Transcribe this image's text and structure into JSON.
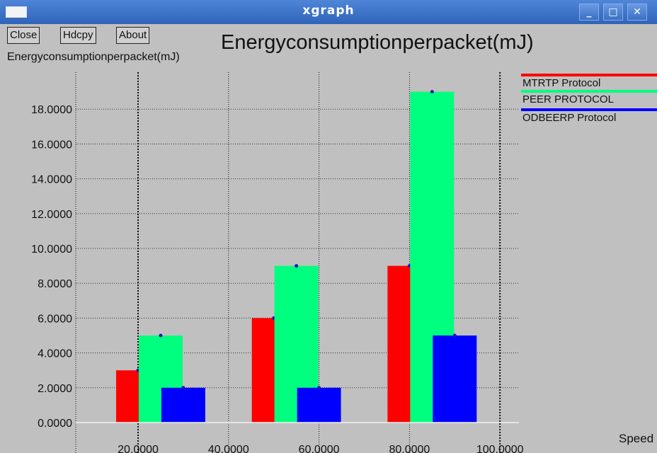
{
  "window": {
    "title": "xgraph",
    "minimize_glyph": "_",
    "maximize_glyph": "□",
    "close_glyph": "✕"
  },
  "toolbar": {
    "close_label": "Close",
    "hdcpy_label": "Hdcpy",
    "about_label": "About"
  },
  "chart_data": {
    "type": "bar",
    "title": "Energyconsumptionperpacket(mJ)",
    "ylabel": "Energyconsumptionperpacket(mJ)",
    "xlabel": "Speed",
    "ylim": [
      0,
      20
    ],
    "xlim": [
      7.7,
      100.7
    ],
    "x_ticks": [
      20,
      40,
      60,
      80,
      100
    ],
    "x_tick_labels": [
      "20.0000",
      "40.0000",
      "60.0000",
      "80.0000",
      "100.0000"
    ],
    "y_ticks": [
      0,
      2,
      4,
      6,
      8,
      10,
      12,
      14,
      16,
      18
    ],
    "y_tick_labels": [
      "0.0000",
      "2.0000",
      "4.0000",
      "6.0000",
      "8.0000",
      "10.0000",
      "12.0000",
      "14.0000",
      "16.0000",
      "18.0000"
    ],
    "grid": true,
    "legend_position": "top-right",
    "series": [
      {
        "name": "MTRTP Protocol",
        "color": "#ff0000",
        "x": [
          20,
          50,
          80
        ],
        "values": [
          3,
          6,
          9
        ]
      },
      {
        "name": "PEER PROTOCOL",
        "color": "#00ff7f",
        "x": [
          25,
          55,
          85
        ],
        "values": [
          5,
          9,
          19
        ]
      },
      {
        "name": "ODBEERP Protocol",
        "color": "#0000ff",
        "x": [
          30,
          60,
          90
        ],
        "values": [
          2,
          2,
          5
        ]
      }
    ]
  }
}
